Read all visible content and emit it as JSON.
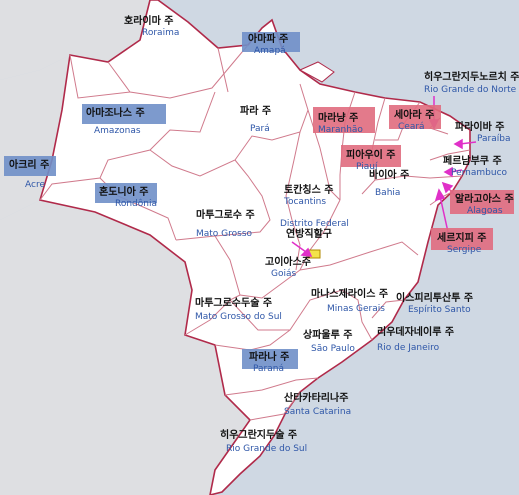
{
  "colors": {
    "sea": "#cfd8e3",
    "land_brazil": "#ffffff",
    "neighbors": "#dedfe2",
    "state_border": "#d07a8c",
    "country_border": "#b02a4a",
    "english_label": "#2f57a8",
    "highlight_blue": "#6f8fc8",
    "highlight_red": "#e06c7e",
    "arrow": "#e030c8",
    "capital_fill": "#f3e34a"
  },
  "states": [
    {
      "id": "roraima",
      "ko": "호라이마 주",
      "en": "Roraima",
      "highlight": "none"
    },
    {
      "id": "amapa",
      "ko": "아마파 주",
      "en": "Amapá",
      "highlight": "blue"
    },
    {
      "id": "amazonas",
      "ko": "아마조나스 주",
      "en": "Amazonas",
      "highlight": "blue"
    },
    {
      "id": "para",
      "ko": "파라 주",
      "en": "Pará",
      "highlight": "none"
    },
    {
      "id": "maranhao",
      "ko": "마라냥 주",
      "en": "Maranhão",
      "highlight": "red"
    },
    {
      "id": "ceara",
      "ko": "세아라 주",
      "en": "Ceará",
      "highlight": "red"
    },
    {
      "id": "rio-grande-do-norte",
      "ko": "히우그란지두노르치 주",
      "en": "Rio Grande do Norte",
      "highlight": "none"
    },
    {
      "id": "paraiba",
      "ko": "파라이바 주",
      "en": "Paraíba",
      "highlight": "none"
    },
    {
      "id": "piaui",
      "ko": "피아우이 주",
      "en": "Piauí",
      "highlight": "red"
    },
    {
      "id": "pernambuco",
      "ko": "페르남부쿠 주",
      "en": "Pernambuco",
      "highlight": "none"
    },
    {
      "id": "alagoas",
      "ko": "알라고아스 주",
      "en": "Alagoas",
      "highlight": "red"
    },
    {
      "id": "sergipe",
      "ko": "세르지피 주",
      "en": "Sergipe",
      "highlight": "red"
    },
    {
      "id": "acre",
      "ko": "아크리 주",
      "en": "Acre",
      "highlight": "blue"
    },
    {
      "id": "rondonia",
      "ko": "혼도니아 주",
      "en": "Rondônia",
      "highlight": "blue"
    },
    {
      "id": "tocantins",
      "ko": "토칸칭스 주",
      "en": "Tocantins",
      "highlight": "none"
    },
    {
      "id": "distrito-federal",
      "ko": "연방직할구",
      "en": "Distrito Federal",
      "highlight": "none"
    },
    {
      "id": "bahia",
      "ko": "바이아 주",
      "en": "Bahia",
      "highlight": "none"
    },
    {
      "id": "mato-grosso",
      "ko": "마투그로수 주",
      "en": "Mato Grosso",
      "highlight": "none"
    },
    {
      "id": "goias",
      "ko": "고이아스주",
      "en": "Goiás",
      "highlight": "none"
    },
    {
      "id": "minas-gerais",
      "ko": "마나스제라이스 주",
      "en": "Minas Gerais",
      "highlight": "none"
    },
    {
      "id": "mato-grosso-do-sul",
      "ko": "마투그로수두술 주",
      "en": "Mato Grosso do Sul",
      "highlight": "none"
    },
    {
      "id": "espirito-santo",
      "ko": "이스피리투산투 주",
      "en": "Espírito Santo",
      "highlight": "none"
    },
    {
      "id": "sao-paulo",
      "ko": "상파울루 주",
      "en": "São Paulo",
      "highlight": "none"
    },
    {
      "id": "rio-de-janeiro",
      "ko": "리우데자네이루 주",
      "en": "Rio de Janeiro",
      "highlight": "none"
    },
    {
      "id": "parana",
      "ko": "파라나 주",
      "en": "Paraná",
      "highlight": "blue"
    },
    {
      "id": "santa-catarina",
      "ko": "산타카타리나주",
      "en": "Santa Catarina",
      "highlight": "none"
    },
    {
      "id": "rio-grande-do-sul",
      "ko": "히우그란지두술 주",
      "en": "Rio Grande do Sul",
      "highlight": "none"
    }
  ]
}
